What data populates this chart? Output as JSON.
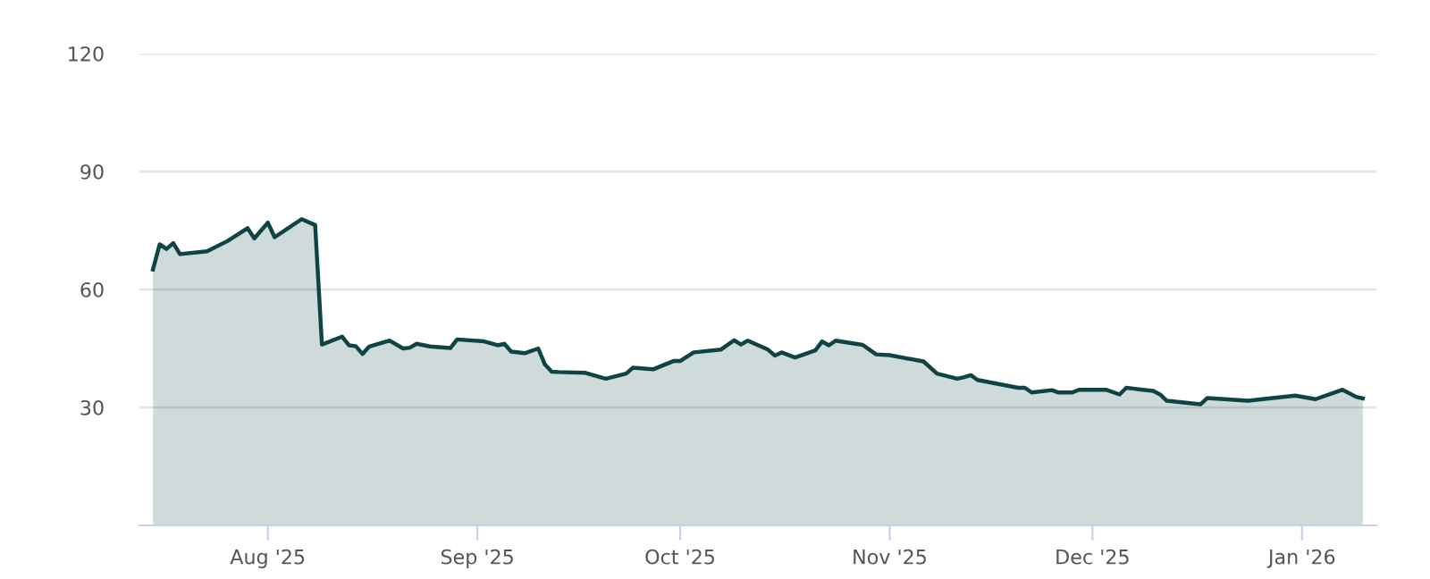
{
  "chart_data": {
    "type": "area",
    "x": [
      "2025-07-15",
      "2025-07-16",
      "2025-07-17",
      "2025-07-18",
      "2025-07-19",
      "2025-07-23",
      "2025-07-26",
      "2025-07-29",
      "2025-07-30",
      "2025-08-01",
      "2025-08-02",
      "2025-08-06",
      "2025-08-08",
      "2025-08-09",
      "2025-08-12",
      "2025-08-13",
      "2025-08-14",
      "2025-08-15",
      "2025-08-16",
      "2025-08-19",
      "2025-08-21",
      "2025-08-22",
      "2025-08-23",
      "2025-08-25",
      "2025-08-28",
      "2025-08-29",
      "2025-09-02",
      "2025-09-04",
      "2025-09-05",
      "2025-09-06",
      "2025-09-08",
      "2025-09-10",
      "2025-09-11",
      "2025-09-12",
      "2025-09-13",
      "2025-09-17",
      "2025-09-20",
      "2025-09-23",
      "2025-09-24",
      "2025-09-27",
      "2025-09-30",
      "2025-10-01",
      "2025-10-03",
      "2025-10-07",
      "2025-10-09",
      "2025-10-10",
      "2025-10-11",
      "2025-10-14",
      "2025-10-15",
      "2025-10-16",
      "2025-10-18",
      "2025-10-21",
      "2025-10-22",
      "2025-10-23",
      "2025-10-24",
      "2025-10-28",
      "2025-10-30",
      "2025-11-01",
      "2025-11-06",
      "2025-11-08",
      "2025-11-11",
      "2025-11-12",
      "2025-11-13",
      "2025-11-14",
      "2025-11-20",
      "2025-11-21",
      "2025-11-22",
      "2025-11-25",
      "2025-11-26",
      "2025-11-28",
      "2025-11-29",
      "2025-12-03",
      "2025-12-05",
      "2025-12-06",
      "2025-12-10",
      "2025-12-11",
      "2025-12-12",
      "2025-12-17",
      "2025-12-18",
      "2025-12-24",
      "2025-12-31",
      "2026-01-03",
      "2026-01-07",
      "2026-01-09",
      "2026-01-10"
    ],
    "series": [
      {
        "color": "#0f4444",
        "values": [
          65.1,
          71.5,
          70.3,
          71.8,
          69,
          69.7,
          72.3,
          75.6,
          73,
          77,
          73.3,
          77.9,
          76.4,
          46,
          48,
          45.8,
          45.6,
          43.6,
          45.5,
          47,
          45,
          45.2,
          46.2,
          45.5,
          45.1,
          47.3,
          46.8,
          45.8,
          46.2,
          44.2,
          43.8,
          45,
          40.9,
          39.1,
          39,
          38.8,
          37.3,
          38.6,
          40.1,
          39.7,
          41.8,
          41.8,
          44,
          44.7,
          47.1,
          46,
          47,
          44.7,
          43.2,
          44,
          42.7,
          44.5,
          46.8,
          45.8,
          47,
          45.9,
          43.5,
          43.3,
          41.7,
          38.6,
          37.3,
          37.7,
          38.2,
          37,
          35,
          35,
          33.8,
          34.4,
          33.8,
          33.8,
          34.5,
          34.5,
          33.3,
          35,
          34.2,
          33.3,
          31.7,
          30.8,
          32.4,
          31.7,
          33,
          32.1,
          34.5,
          32.7,
          32.3
        ]
      }
    ],
    "xlim": [
      "2025-07-13",
      "2026-01-12"
    ],
    "xticks": [
      {
        "value": "2025-08-01",
        "label": "Aug '25"
      },
      {
        "value": "2025-09-01",
        "label": "Sep '25"
      },
      {
        "value": "2025-10-01",
        "label": "Oct '25"
      },
      {
        "value": "2025-11-01",
        "label": "Nov '25"
      },
      {
        "value": "2025-12-01",
        "label": "Dec '25"
      },
      {
        "value": "2026-01-01",
        "label": "Jan '26"
      }
    ],
    "ylim": [
      0,
      120
    ],
    "yticks": [
      30,
      60,
      90,
      120
    ],
    "grid": "y",
    "legend": false,
    "marker": "none",
    "line_style": "solid"
  }
}
